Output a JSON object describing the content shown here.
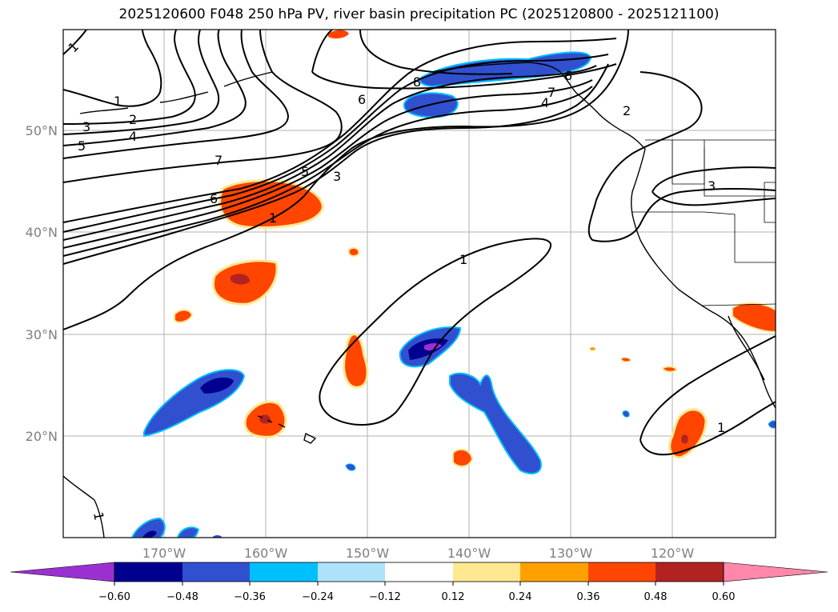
{
  "title": "2025120600 F048 250 hPa PV, river basin precipitation PC (2025120800 - 2025121100)",
  "latitude_labels": [
    "50°N",
    "40°N",
    "30°N",
    "20°N"
  ],
  "longitude_labels": [
    "170°W",
    "160°W",
    "150°W",
    "140°W",
    "130°W",
    "120°W"
  ],
  "contour_labels": [
    "1",
    "1",
    "2",
    "3",
    "4",
    "5",
    "6",
    "7",
    "8",
    "6",
    "7",
    "4",
    "2",
    "5",
    "3",
    "6",
    "1",
    "1",
    "3",
    "1",
    "1"
  ],
  "colorbar": {
    "ticks": [
      "−0.60",
      "−0.48",
      "−0.36",
      "−0.24",
      "−0.12",
      "0.12",
      "0.24",
      "0.36",
      "0.48",
      "0.60"
    ],
    "colors": [
      "#9b30d0",
      "#000090",
      "#3050d0",
      "#00bfff",
      "#aee2fa",
      "#ffffff",
      "#ffe890",
      "#ffa000",
      "#ff4500",
      "#b22222",
      "#ff88aa"
    ]
  },
  "colors": {
    "neg_strong": "#000090",
    "neg_mid": "#3050d0",
    "neg_light": "#00bfff",
    "neg_extreme": "#9b30d0",
    "pos_light": "#ffe890",
    "pos_mid": "#ffa000",
    "pos_strong": "#ff4500",
    "pos_extreme": "#b22222"
  }
}
